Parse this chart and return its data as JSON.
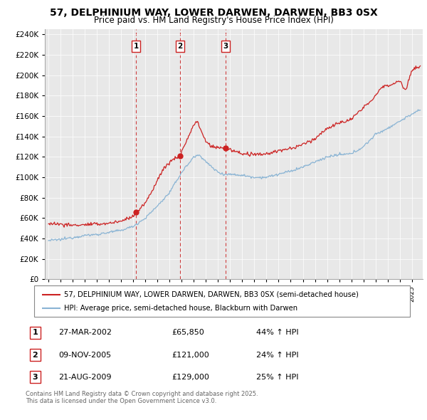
{
  "title": "57, DELPHINIUM WAY, LOWER DARWEN, DARWEN, BB3 0SX",
  "subtitle": "Price paid vs. HM Land Registry's House Price Index (HPI)",
  "legend_house": "57, DELPHINIUM WAY, LOWER DARWEN, DARWEN, BB3 0SX (semi-detached house)",
  "legend_hpi": "HPI: Average price, semi-detached house, Blackburn with Darwen",
  "footer": "Contains HM Land Registry data © Crown copyright and database right 2025.\nThis data is licensed under the Open Government Licence v3.0.",
  "transactions": [
    {
      "num": 1,
      "date": "27-MAR-2002",
      "price": "£65,850",
      "hpi": "44% ↑ HPI",
      "year": 2002.23,
      "price_val": 65850
    },
    {
      "num": 2,
      "date": "09-NOV-2005",
      "price": "£121,000",
      "hpi": "24% ↑ HPI",
      "year": 2005.86,
      "price_val": 121000
    },
    {
      "num": 3,
      "date": "21-AUG-2009",
      "price": "£129,000",
      "hpi": "25% ↑ HPI",
      "year": 2009.64,
      "price_val": 129000
    }
  ],
  "hpi_color": "#8ab4d4",
  "house_color": "#cc2222",
  "dashed_color": "#cc2222",
  "ylim": [
    0,
    245000
  ],
  "yticks": [
    0,
    20000,
    40000,
    60000,
    80000,
    100000,
    120000,
    140000,
    160000,
    180000,
    200000,
    220000,
    240000
  ],
  "background_color": "#e8e8e8"
}
